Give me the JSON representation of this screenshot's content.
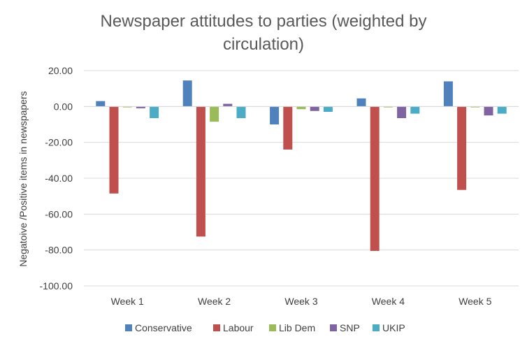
{
  "chart_data": {
    "type": "bar",
    "title_lines": [
      "Newspaper attitudes to parties (weighted by",
      "circulation)"
    ],
    "xlabel": "",
    "ylabel": "Negatoive /Positive items in newspapers",
    "ylim": [
      -100,
      20
    ],
    "yticks": [
      20,
      0,
      -20,
      -40,
      -60,
      -80,
      -100
    ],
    "ytick_labels": [
      "20.00",
      "0.00",
      "-20.00",
      "-40.00",
      "-60.00",
      "-80.00",
      "-100.00"
    ],
    "categories": [
      "Week 1",
      "Week 2",
      "Week 3",
      "Week 4",
      "Week 5"
    ],
    "series": [
      {
        "name": "Conservative",
        "color": "#4F81BD",
        "values": [
          3,
          14.5,
          -10,
          4.5,
          14
        ]
      },
      {
        "name": "Labour",
        "color": "#C0504D",
        "values": [
          -48.5,
          -72.5,
          -24,
          -80.5,
          -46.5
        ]
      },
      {
        "name": "Lib Dem",
        "color": "#9BBB59",
        "values": [
          -0.5,
          -8.5,
          -1.5,
          -0.5,
          -0.5
        ]
      },
      {
        "name": "SNP",
        "color": "#8064A2",
        "values": [
          -1,
          1.5,
          -2.5,
          -6.5,
          -5
        ]
      },
      {
        "name": "UKIP",
        "color": "#4BACC6",
        "values": [
          -6.5,
          -6.5,
          -3,
          -4,
          -4
        ]
      }
    ],
    "grid": true,
    "legend_position": "bottom"
  }
}
